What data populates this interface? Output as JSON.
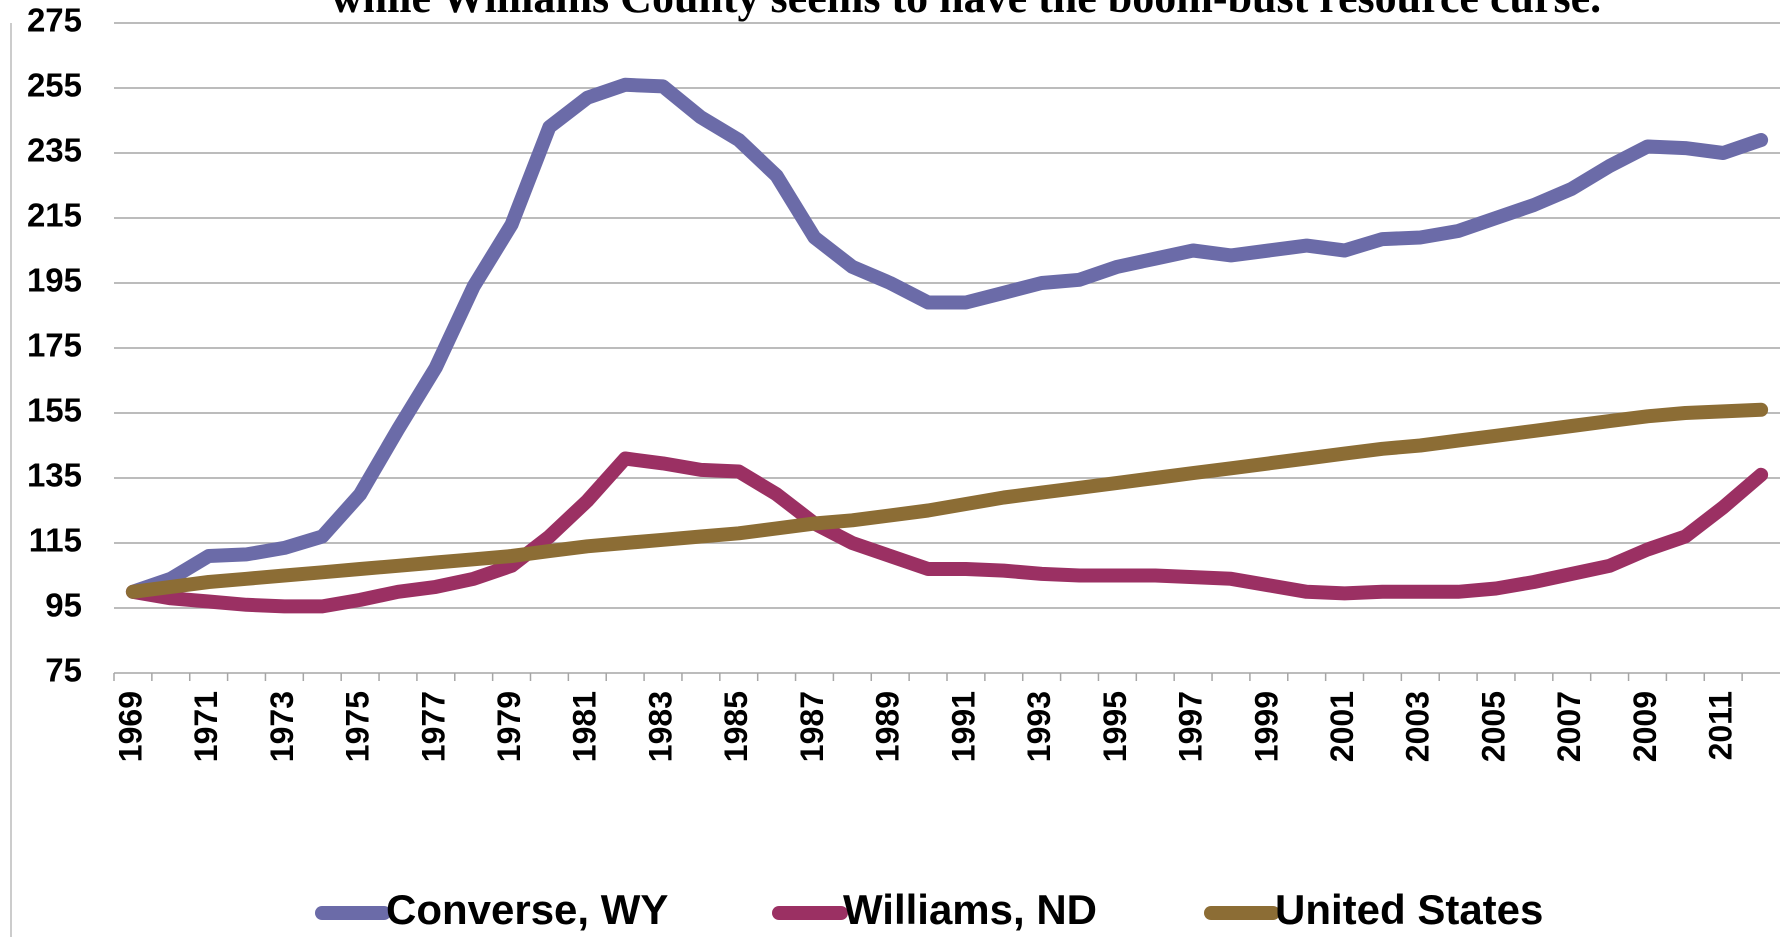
{
  "chart_data": {
    "type": "line",
    "title": "while Williams County seems to have the boom-bust resource curse.",
    "categories": [
      "1969",
      null,
      "1971",
      null,
      "1973",
      null,
      "1975",
      null,
      "1977",
      null,
      "1979",
      null,
      "1981",
      null,
      "1983",
      null,
      "1985",
      null,
      "1987",
      null,
      "1989",
      null,
      "1991",
      null,
      "1993",
      null,
      "1995",
      null,
      "1997",
      null,
      "1999",
      null,
      "2001",
      null,
      "2003",
      null,
      "2005",
      null,
      "2007",
      null,
      "2009",
      null,
      "2011",
      null
    ],
    "series": [
      {
        "name": "Converse, WY",
        "color": "#6b6ba8",
        "values": [
          100,
          104,
          111,
          111.5,
          113.5,
          117,
          130,
          150,
          169,
          194,
          213,
          243,
          252,
          256,
          255.5,
          246,
          239,
          228,
          209,
          200,
          195,
          189,
          189,
          192,
          195,
          196,
          200,
          202.5,
          205,
          203.5,
          205,
          206.5,
          205,
          208.5,
          209,
          211,
          215,
          219,
          224,
          231,
          237,
          236.5,
          235,
          239
        ]
      },
      {
        "name": "Williams, ND",
        "color": "#9b3063",
        "values": [
          100,
          98,
          97,
          96,
          95.5,
          95.5,
          97.5,
          100,
          101.5,
          104,
          108,
          117,
          128,
          141,
          139.5,
          137.5,
          137,
          130,
          121,
          115,
          111,
          107,
          107,
          106.5,
          105.5,
          105,
          105,
          105,
          104.5,
          104,
          102,
          100,
          99.5,
          100,
          100,
          100,
          101,
          103,
          105.5,
          108,
          113,
          117,
          126,
          136
        ]
      },
      {
        "name": "United States",
        "color": "#8c6d35",
        "values": [
          100,
          101.5,
          103,
          104,
          105,
          106,
          107,
          108,
          109,
          110,
          111,
          112.5,
          114,
          115,
          116,
          117,
          118,
          119.5,
          121,
          122,
          123.5,
          125,
          127,
          129,
          130.5,
          132,
          133.5,
          135,
          136.5,
          138,
          139.5,
          141,
          142.5,
          144,
          145,
          146.5,
          148,
          149.5,
          151,
          152.5,
          154,
          155,
          155.5,
          156
        ]
      }
    ],
    "ylim": [
      75,
      275
    ],
    "yticks": [
      75,
      95,
      115,
      135,
      155,
      175,
      195,
      215,
      235,
      255,
      275
    ],
    "grid": true
  }
}
